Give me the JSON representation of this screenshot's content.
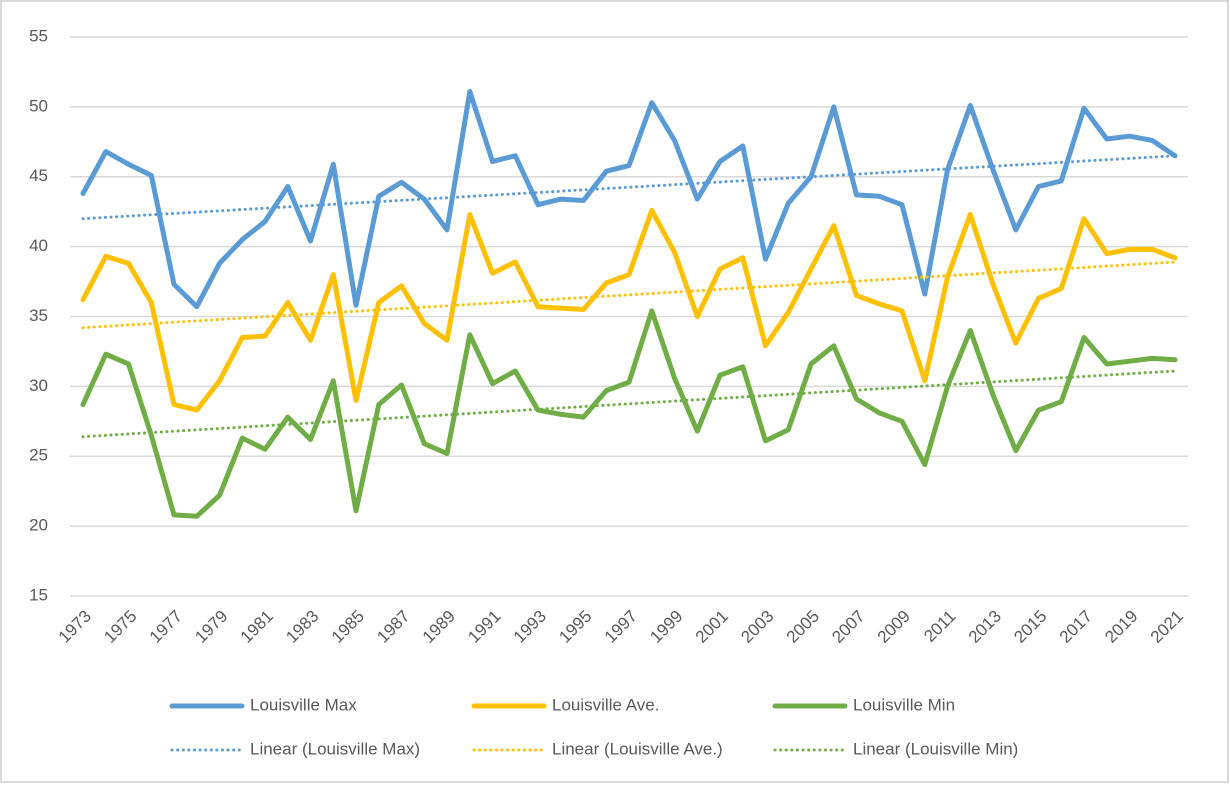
{
  "chart_data": {
    "type": "line",
    "x": [
      1973,
      1974,
      1975,
      1976,
      1977,
      1978,
      1979,
      1980,
      1981,
      1982,
      1983,
      1984,
      1985,
      1986,
      1987,
      1988,
      1989,
      1990,
      1991,
      1992,
      1993,
      1994,
      1995,
      1996,
      1997,
      1998,
      1999,
      2000,
      2001,
      2002,
      2003,
      2004,
      2005,
      2006,
      2007,
      2008,
      2009,
      2010,
      2011,
      2012,
      2013,
      2014,
      2015,
      2016,
      2017,
      2018,
      2019,
      2020,
      2021
    ],
    "xlim": [
      1973,
      2021
    ],
    "xticks": [
      1973,
      1975,
      1977,
      1979,
      1981,
      1983,
      1985,
      1987,
      1989,
      1991,
      1993,
      1995,
      1997,
      1999,
      2001,
      2003,
      2005,
      2007,
      2009,
      2011,
      2013,
      2015,
      2017,
      2019,
      2021
    ],
    "ylim": [
      15,
      55
    ],
    "yticks": [
      15,
      20,
      25,
      30,
      35,
      40,
      45,
      50,
      55
    ],
    "grid": true,
    "series": [
      {
        "name": "Louisville Max",
        "color": "#5b9bd5",
        "values": [
          43.8,
          46.8,
          45.9,
          45.1,
          37.3,
          35.7,
          38.8,
          40.5,
          41.8,
          44.3,
          40.4,
          45.9,
          35.8,
          43.6,
          44.6,
          43.4,
          41.2,
          51.1,
          46.1,
          46.5,
          43.0,
          43.4,
          43.3,
          45.4,
          45.8,
          50.3,
          47.6,
          43.4,
          46.1,
          47.2,
          39.1,
          43.1,
          45.0,
          50.0,
          43.7,
          43.6,
          43.0,
          36.6,
          45.5,
          50.1,
          45.5,
          41.2,
          44.3,
          44.7,
          49.9,
          47.7,
          47.9,
          47.6,
          46.5
        ]
      },
      {
        "name": "Louisville Ave.",
        "color": "#ffc000",
        "values": [
          36.2,
          39.3,
          38.8,
          36.0,
          28.7,
          28.3,
          30.4,
          33.5,
          33.6,
          36.0,
          33.3,
          38.0,
          29.0,
          36.0,
          37.2,
          34.5,
          33.3,
          42.3,
          38.1,
          38.9,
          35.7,
          35.6,
          35.5,
          37.4,
          38.0,
          42.6,
          39.6,
          35.0,
          38.4,
          39.2,
          32.9,
          35.3,
          38.4,
          41.5,
          36.5,
          35.9,
          35.4,
          30.4,
          37.8,
          42.3,
          37.3,
          33.1,
          36.3,
          37.0,
          42.0,
          39.5,
          39.8,
          39.8,
          39.2
        ]
      },
      {
        "name": "Louisville Min",
        "color": "#70ad47",
        "values": [
          28.7,
          32.3,
          31.6,
          26.5,
          20.8,
          20.7,
          22.2,
          26.3,
          25.5,
          27.8,
          26.2,
          30.4,
          21.1,
          28.7,
          30.1,
          25.9,
          25.2,
          33.7,
          30.2,
          31.1,
          28.3,
          28.0,
          27.8,
          29.7,
          30.3,
          35.4,
          30.6,
          26.8,
          30.8,
          31.4,
          26.1,
          26.9,
          31.6,
          32.9,
          29.1,
          28.1,
          27.5,
          24.4,
          30.0,
          34.0,
          29.4,
          25.4,
          28.3,
          28.9,
          33.5,
          31.6,
          31.8,
          32.0,
          31.9
        ]
      },
      {
        "name": "Linear (Louisville Max)",
        "color": "#5b9bd5",
        "dotted": true,
        "x": [
          1973,
          2021
        ],
        "values": [
          42.0,
          46.5
        ]
      },
      {
        "name": "Linear (Louisville Ave.)",
        "color": "#ffc000",
        "dotted": true,
        "x": [
          1973,
          2021
        ],
        "values": [
          34.2,
          38.9
        ]
      },
      {
        "name": "Linear (Louisville Min)",
        "color": "#70ad47",
        "dotted": true,
        "x": [
          1973,
          2021
        ],
        "values": [
          26.4,
          31.1
        ]
      }
    ]
  }
}
